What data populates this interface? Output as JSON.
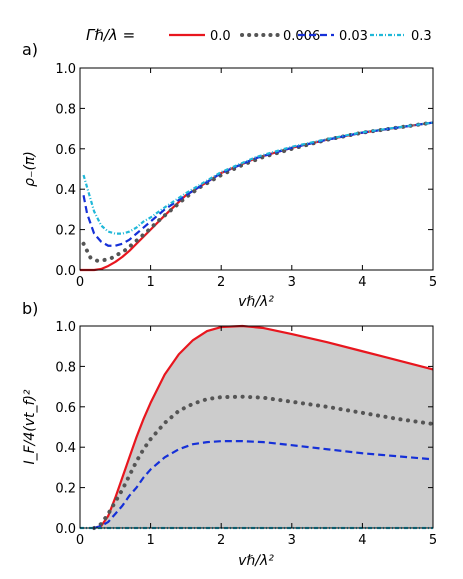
{
  "legend": {
    "title": "Γℏ/λ =",
    "entries": [
      "0.0",
      "0.006",
      "0.03",
      "0.3"
    ]
  },
  "colors": {
    "s0": "#e8161e",
    "s1": "#555555",
    "s2": "#1530d8",
    "s3": "#20b8d8",
    "fill": "#cccccc"
  },
  "chart_data": [
    {
      "panel": "a)",
      "type": "line",
      "xlabel": "vℏ/λ²",
      "ylabel": "ρ₋(π)",
      "xlim": [
        0,
        5
      ],
      "ylim": [
        0,
        1.0
      ],
      "xticks": [
        "0",
        "1",
        "2",
        "3",
        "4",
        "5"
      ],
      "yticks": [
        "0.0",
        "0.2",
        "0.4",
        "0.6",
        "0.8",
        "1.0"
      ],
      "grid": false,
      "series": [
        {
          "name": "0.0",
          "style": "solid",
          "x": [
            0,
            0.2,
            0.3,
            0.4,
            0.5,
            0.6,
            0.7,
            0.8,
            1.0,
            1.2,
            1.5,
            2.0,
            2.5,
            3.0,
            3.5,
            4.0,
            4.5,
            5.0
          ],
          "y": [
            0,
            0,
            0.005,
            0.02,
            0.04,
            0.065,
            0.095,
            0.13,
            0.2,
            0.27,
            0.37,
            0.48,
            0.555,
            0.605,
            0.645,
            0.68,
            0.705,
            0.73
          ]
        },
        {
          "name": "0.006",
          "style": "dotted",
          "x": [
            0.05,
            0.15,
            0.25,
            0.35,
            0.45,
            0.55,
            0.65,
            0.75,
            0.85,
            0.95,
            1.1,
            1.3,
            1.5,
            1.7,
            2.0,
            2.3,
            2.6,
            3.0,
            3.5,
            4.0,
            4.5,
            5.0
          ],
          "y": [
            0.13,
            0.06,
            0.045,
            0.05,
            0.06,
            0.08,
            0.1,
            0.13,
            0.16,
            0.19,
            0.24,
            0.3,
            0.36,
            0.41,
            0.47,
            0.52,
            0.56,
            0.6,
            0.645,
            0.68,
            0.705,
            0.73
          ]
        },
        {
          "name": "0.03",
          "style": "dashed",
          "x": [
            0.05,
            0.1,
            0.2,
            0.3,
            0.4,
            0.5,
            0.6,
            0.7,
            0.8,
            0.9,
            1.0,
            1.2,
            1.5,
            2.0,
            2.5,
            3.0,
            3.5,
            4.0,
            4.5,
            5.0
          ],
          "y": [
            0.37,
            0.28,
            0.18,
            0.14,
            0.12,
            0.12,
            0.13,
            0.15,
            0.18,
            0.21,
            0.24,
            0.3,
            0.37,
            0.48,
            0.555,
            0.605,
            0.645,
            0.68,
            0.705,
            0.73
          ]
        },
        {
          "name": "0.3",
          "style": "dashdot",
          "x": [
            0.05,
            0.1,
            0.2,
            0.3,
            0.4,
            0.5,
            0.6,
            0.7,
            0.8,
            0.9,
            1.0,
            1.2,
            1.5,
            2.0,
            2.5,
            3.0,
            3.5,
            4.0,
            4.5,
            5.0
          ],
          "y": [
            0.47,
            0.41,
            0.29,
            0.22,
            0.19,
            0.18,
            0.18,
            0.19,
            0.21,
            0.24,
            0.26,
            0.31,
            0.38,
            0.485,
            0.56,
            0.61,
            0.648,
            0.682,
            0.706,
            0.73
          ]
        }
      ]
    },
    {
      "panel": "b)",
      "type": "line",
      "xlabel": "vℏ/λ²",
      "ylabel": "I_F/4(vt_f)²",
      "xlim": [
        0,
        5
      ],
      "ylim": [
        0,
        1.0
      ],
      "xticks": [
        "0",
        "1",
        "2",
        "3",
        "4",
        "5"
      ],
      "yticks": [
        "0.0",
        "0.2",
        "0.4",
        "0.6",
        "0.8",
        "1.0"
      ],
      "grid": false,
      "shaded_under": "0.0",
      "series": [
        {
          "name": "0.0",
          "style": "solid",
          "x": [
            0.2,
            0.3,
            0.4,
            0.5,
            0.6,
            0.7,
            0.8,
            0.9,
            1.0,
            1.2,
            1.4,
            1.6,
            1.8,
            2.0,
            2.3,
            2.6,
            3.0,
            3.5,
            4.0,
            4.5,
            5.0
          ],
          "y": [
            0,
            0.01,
            0.06,
            0.15,
            0.25,
            0.35,
            0.45,
            0.54,
            0.62,
            0.76,
            0.86,
            0.93,
            0.975,
            0.995,
            1.0,
            0.99,
            0.96,
            0.92,
            0.875,
            0.83,
            0.785
          ]
        },
        {
          "name": "0.006",
          "style": "dotted",
          "x": [
            0.2,
            0.3,
            0.4,
            0.5,
            0.6,
            0.7,
            0.8,
            0.9,
            1.0,
            1.2,
            1.4,
            1.6,
            1.8,
            2.0,
            2.3,
            2.6,
            3.0,
            3.5,
            4.0,
            4.5,
            5.0
          ],
          "y": [
            0,
            0.02,
            0.07,
            0.13,
            0.19,
            0.26,
            0.33,
            0.39,
            0.44,
            0.52,
            0.58,
            0.615,
            0.638,
            0.648,
            0.65,
            0.645,
            0.625,
            0.6,
            0.57,
            0.54,
            0.515
          ]
        },
        {
          "name": "0.03",
          "style": "dashed",
          "x": [
            0.2,
            0.3,
            0.4,
            0.5,
            0.6,
            0.7,
            0.8,
            0.9,
            1.0,
            1.2,
            1.4,
            1.6,
            1.8,
            2.0,
            2.3,
            2.6,
            3.0,
            3.5,
            4.0,
            4.5,
            5.0
          ],
          "y": [
            0,
            0.01,
            0.03,
            0.07,
            0.11,
            0.16,
            0.2,
            0.25,
            0.29,
            0.35,
            0.39,
            0.415,
            0.425,
            0.43,
            0.43,
            0.425,
            0.41,
            0.39,
            0.37,
            0.355,
            0.34
          ]
        },
        {
          "name": "0.3",
          "style": "dashdot",
          "x": [
            0,
            1,
            2,
            3,
            4,
            5
          ],
          "y": [
            0,
            0,
            0,
            0,
            0,
            0
          ]
        }
      ]
    }
  ]
}
